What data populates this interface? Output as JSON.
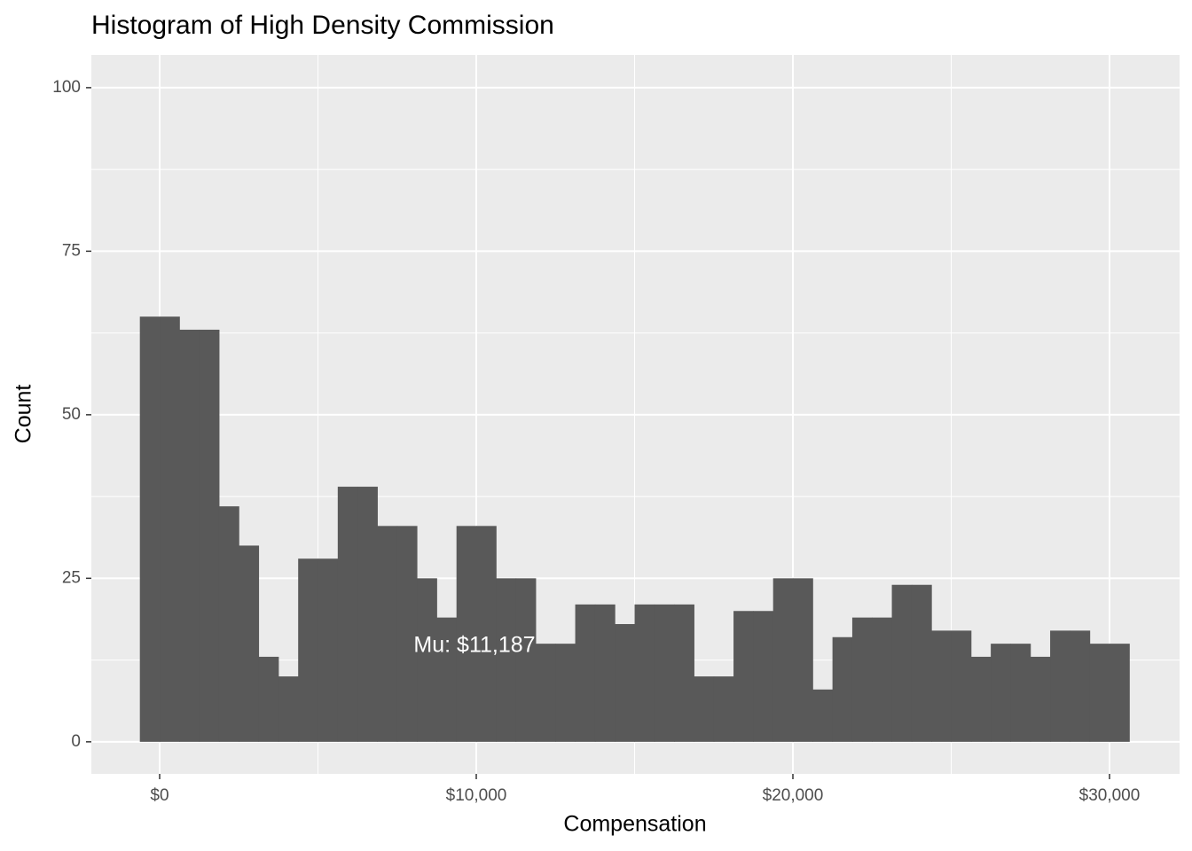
{
  "chart_data": {
    "type": "histogram",
    "title": "Histogram of High Density Commission",
    "x_label": "Compensation",
    "y_label": "Count",
    "annotation": "Mu: $11,187",
    "color": "#595959",
    "grid": true,
    "bins": [
      -625,
      0,
      625,
      1250,
      1875,
      2500,
      3125,
      3750,
      4375,
      5000,
      5625,
      6250,
      6875,
      7500,
      8125,
      8750,
      9375,
      10000,
      10625,
      11250,
      11875,
      12500,
      13125,
      13750,
      14375,
      15000,
      15625,
      16250,
      16875,
      17500,
      18125,
      18750,
      19375,
      20000,
      20625,
      21250,
      21875,
      22500,
      23125,
      23750,
      24375,
      25000,
      25625,
      26250,
      26875,
      27500,
      28125,
      28750,
      29375,
      30000,
      30625
    ],
    "values": [
      65,
      65,
      63,
      63,
      36,
      30,
      13,
      10,
      28,
      28,
      39,
      39,
      33,
      33,
      25,
      19,
      33,
      33,
      25,
      25,
      15,
      15,
      21,
      21,
      18,
      21,
      21,
      21,
      10,
      10,
      20,
      20,
      25,
      25,
      8,
      16,
      19,
      19,
      24,
      24,
      17,
      17,
      13,
      15,
      15,
      13,
      17,
      17,
      15,
      15
    ],
    "xlim": [
      -2157,
      32213
    ],
    "ylim": [
      -4.9,
      105
    ],
    "xticks": [
      {
        "value": 0,
        "label": "$0"
      },
      {
        "value": 10000,
        "label": "$10,000"
      },
      {
        "value": 20000,
        "label": "$20,000"
      },
      {
        "value": 30000,
        "label": "$30,000"
      }
    ],
    "yticks": [
      0,
      25,
      50,
      75,
      100
    ]
  }
}
